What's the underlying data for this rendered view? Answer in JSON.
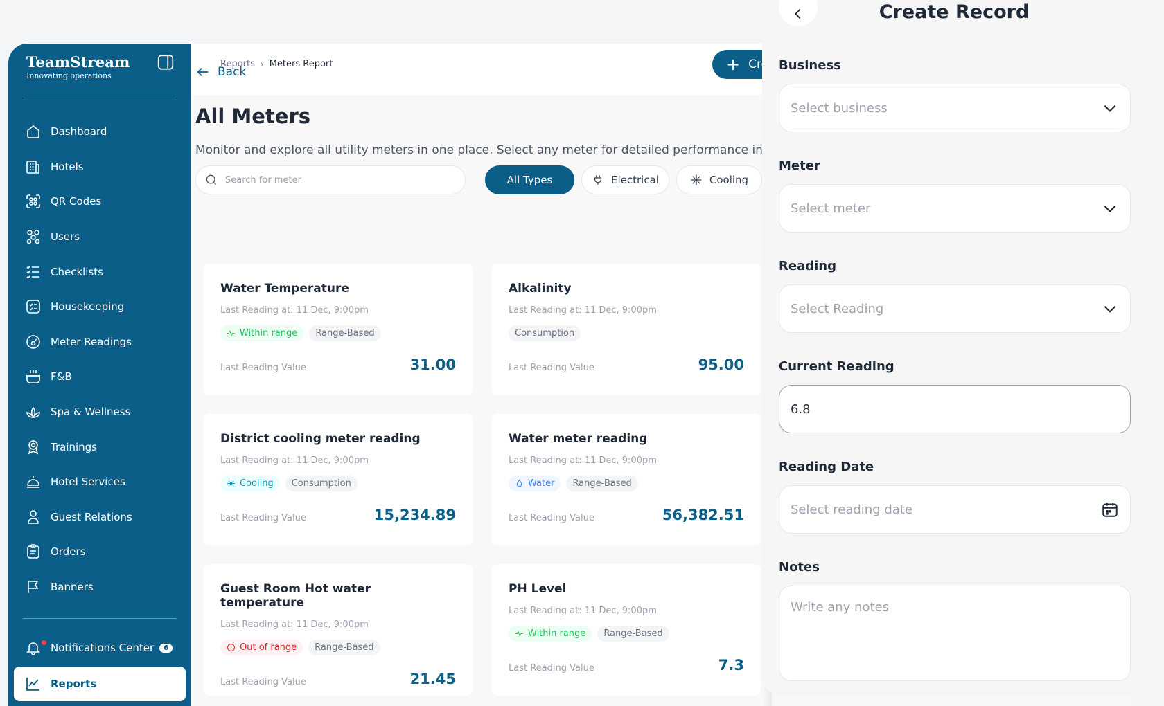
{
  "brand": {
    "name": "TeamStream",
    "tagline": "Innovating operations"
  },
  "sidebar": {
    "items": [
      {
        "label": "Dashboard",
        "icon": "home-icon"
      },
      {
        "label": "Hotels",
        "icon": "building-icon"
      },
      {
        "label": "QR Codes",
        "icon": "qr-icon"
      },
      {
        "label": "Users",
        "icon": "users-icon"
      },
      {
        "label": "Checklists",
        "icon": "checklist-icon"
      },
      {
        "label": "Housekeeping",
        "icon": "housekeeping-icon"
      },
      {
        "label": "Meter Readings",
        "icon": "gauge-icon"
      },
      {
        "label": "F&B",
        "icon": "food-icon"
      },
      {
        "label": "Spa & Wellness",
        "icon": "lotus-icon"
      },
      {
        "label": "Trainings",
        "icon": "award-icon"
      },
      {
        "label": "Hotel Services",
        "icon": "bell-service-icon"
      },
      {
        "label": "Guest Relations",
        "icon": "person-icon"
      },
      {
        "label": "Orders",
        "icon": "clipboard-icon"
      },
      {
        "label": "Banners",
        "icon": "flag-icon"
      }
    ],
    "notifications": {
      "label": "Notifications Center",
      "count": "6"
    },
    "active": {
      "label": "Reports"
    }
  },
  "topbar": {
    "breadcrumb": [
      "Reports",
      "Meters Report"
    ],
    "create_button": "Create Record"
  },
  "main": {
    "back_label": "Back",
    "title": "All Meters",
    "description": "Monitor and explore all utility meters in one place. Select any meter for detailed performance insights.",
    "search_placeholder": "Search for meter",
    "filters": [
      "All Types",
      "Electrical",
      "Cooling"
    ],
    "cards": [
      {
        "title": "Water Temperature",
        "meta": "Last Reading at: 11 Dec, 9:00pm",
        "tags": [
          "Within range",
          "Range-Based"
        ],
        "value_label": "Last Reading Value",
        "value": "31.00"
      },
      {
        "title": "Alkalinity",
        "meta": "Last Reading at: 11 Dec, 9:00pm",
        "tags": [
          "Consumption"
        ],
        "value_label": "Last Reading Value",
        "value": "95.00"
      },
      {
        "title": "District cooling meter reading",
        "meta": "Last Reading at: 11 Dec, 9:00pm",
        "tags": [
          "Cooling",
          "Consumption"
        ],
        "value_label": "Last Reading Value",
        "value": "15,234.89"
      },
      {
        "title": "Water meter reading",
        "meta": "Last Reading at: 11 Dec, 9:00pm",
        "tags": [
          "Water",
          "Range-Based"
        ],
        "value_label": "Last Reading Value",
        "value": "56,382.51"
      },
      {
        "title": "Guest Room Hot water temperature",
        "meta": "Last Reading at: 11 Dec, 9:00pm",
        "tags": [
          "Out of range",
          "Range-Based"
        ],
        "value_label": "Last Reading Value",
        "value": "21.45"
      },
      {
        "title": "PH Level",
        "meta": "Last Reading at: 11 Dec, 9:00pm",
        "tags": [
          "Within range",
          "Range-Based"
        ],
        "value_label": "Last Reading Value",
        "value": "7.3"
      }
    ]
  },
  "drawer": {
    "title": "Create Record",
    "fields": {
      "business": {
        "label": "Business",
        "placeholder": "Select business"
      },
      "meter": {
        "label": "Meter",
        "placeholder": "Select meter"
      },
      "reading": {
        "label": "Reading",
        "placeholder": "Select Reading"
      },
      "current_reading": {
        "label": "Current Reading",
        "value": "6.8"
      },
      "reading_date": {
        "label": "Reading Date",
        "placeholder": "Select reading date"
      },
      "notes": {
        "label": "Notes",
        "placeholder": "Write any notes"
      }
    }
  },
  "colors": {
    "primary": "#0a5e87",
    "success": "#22c55e",
    "danger": "#dc2626",
    "info": "#3b82f6"
  }
}
